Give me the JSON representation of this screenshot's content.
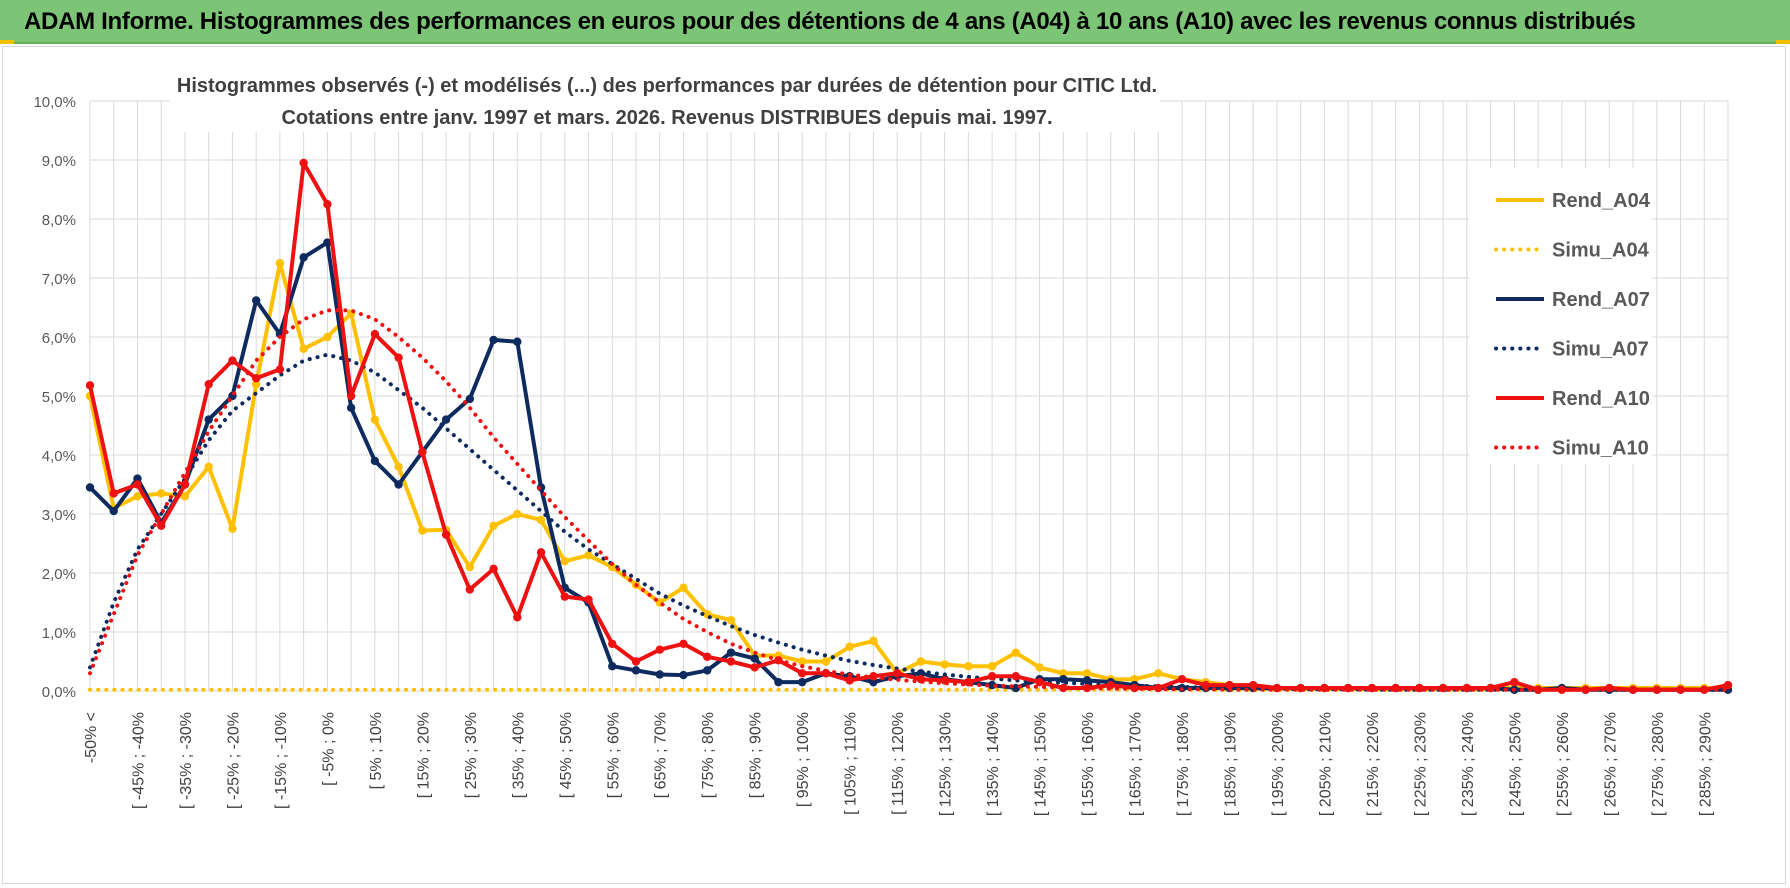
{
  "banner": {
    "title": "ADAM Informe. Histogrammes des performances en euros pour des détentions de 4 ans (A04) à 10 ans (A10) avec les revenus connus distribués"
  },
  "colors": {
    "banner_bg": "#7cc576",
    "A04": "#ffc000",
    "A07": "#0d2b5e",
    "A10": "#ee1111",
    "grid": "#d9d9d9"
  },
  "chart_data": {
    "type": "line",
    "title": "Histogrammes observés (-) et modélisés (...) des performances par durées de détention pour CITIC Ltd.",
    "subtitle": "Cotations entre janv. 1997 et mars. 2026. Revenus DISTRIBUES depuis mai. 1997.",
    "xlabel": "",
    "ylabel": "",
    "ylim": [
      0,
      10
    ],
    "y_ticks": [
      "0,0%",
      "1,0%",
      "2,0%",
      "3,0%",
      "4,0%",
      "5,0%",
      "6,0%",
      "7,0%",
      "8,0%",
      "9,0%",
      "10,0%"
    ],
    "x_tick_labels": [
      "-50% <",
      "[ -45% ; -40%",
      "[ -35% ; -30%",
      "[ -25% ; -20%",
      "[ -15% ; -10%",
      "[ -5% ; 0%",
      "[ 5% ; 10%",
      "[ 15% ; 20%",
      "[ 25% ; 30%",
      "[ 35% ; 40%",
      "[ 45% ; 50%",
      "[ 55% ; 60%",
      "[ 65% ; 70%",
      "[ 75% ; 80%",
      "[ 85% ; 90%",
      "[ 95% ; 100%",
      "[ 105% ; 110%",
      "[ 115% ; 120%",
      "[ 125% ; 130%",
      "[ 135% ; 140%",
      "[ 145% ; 150%",
      "[ 155% ; 160%",
      "[ 165% ; 170%",
      "[ 175% ; 180%",
      "[ 185% ; 190%",
      "[ 195% ; 200%",
      "[ 205% ; 210%",
      "[ 215% ; 220%",
      "[ 225% ; 230%",
      "[ 235% ; 240%",
      "[ 245% ; 250%",
      "[ 255% ; 260%",
      "[ 265% ; 270%",
      "[ 275% ; 280%",
      "[ 285% ; 290%"
    ],
    "x_count": 70,
    "legend_position": "right",
    "series": [
      {
        "name": "Rend_A04",
        "color": "#ffc000",
        "style": "solid",
        "values": [
          5.0,
          3.1,
          3.3,
          3.35,
          3.3,
          3.8,
          2.75,
          5.2,
          7.25,
          5.8,
          6.0,
          6.4,
          4.6,
          3.8,
          2.72,
          2.73,
          2.1,
          2.8,
          3.0,
          2.9,
          2.2,
          2.3,
          2.1,
          1.8,
          1.5,
          1.75,
          1.3,
          1.2,
          0.6,
          0.6,
          0.5,
          0.5,
          0.75,
          0.85,
          0.3,
          0.5,
          0.45,
          0.42,
          0.42,
          0.65,
          0.4,
          0.3,
          0.3,
          0.2,
          0.2,
          0.3,
          0.2,
          0.15,
          0.1,
          0.05,
          0.05,
          0.05,
          0.05,
          0.05,
          0.05,
          0.05,
          0.05,
          0.05,
          0.05,
          0.05,
          0.05,
          0.05,
          0.05,
          0.05,
          0.05,
          0.05,
          0.05,
          0.05,
          0.05,
          0.05
        ]
      },
      {
        "name": "Simu_A04",
        "color": "#ffc000",
        "style": "dotted",
        "values": [
          0.02,
          0.02,
          0.02,
          0.02,
          0.02,
          0.02,
          0.02,
          0.02,
          0.02,
          0.02,
          0.02,
          0.02,
          0.02,
          0.02,
          0.02,
          0.02,
          0.02,
          0.02,
          0.02,
          0.02,
          0.02,
          0.02,
          0.02,
          0.02,
          0.02,
          0.02,
          0.02,
          0.02,
          0.02,
          0.02,
          0.02,
          0.02,
          0.02,
          0.02,
          0.02,
          0.02,
          0.02,
          0.02,
          0.02,
          0.02,
          0.02,
          0.02,
          0.02,
          0.02,
          0.02,
          0.02,
          0.02,
          0.02,
          0.02,
          0.02,
          0.02,
          0.02,
          0.02,
          0.02,
          0.02,
          0.02,
          0.02,
          0.02,
          0.02,
          0.02,
          0.02,
          0.02,
          0.02,
          0.02,
          0.02,
          0.02,
          0.02,
          0.02,
          0.02,
          0.02
        ]
      },
      {
        "name": "Rend_A07",
        "color": "#0d2b5e",
        "style": "solid",
        "values": [
          3.45,
          3.05,
          3.6,
          2.85,
          3.5,
          4.6,
          5.0,
          6.62,
          6.05,
          7.35,
          7.6,
          4.8,
          3.9,
          3.5,
          4.05,
          4.6,
          4.95,
          5.95,
          5.92,
          3.45,
          1.75,
          1.5,
          0.42,
          0.35,
          0.28,
          0.27,
          0.35,
          0.65,
          0.55,
          0.15,
          0.15,
          0.3,
          0.25,
          0.15,
          0.25,
          0.3,
          0.2,
          0.15,
          0.1,
          0.05,
          0.2,
          0.2,
          0.18,
          0.15,
          0.1,
          0.05,
          0.05,
          0.05,
          0.05,
          0.05,
          0.05,
          0.05,
          0.05,
          0.05,
          0.05,
          0.05,
          0.05,
          0.05,
          0.05,
          0.05,
          0.02,
          0.02,
          0.05,
          0.02,
          0.02,
          0.02,
          0.02,
          0.02,
          0.02,
          0.02
        ]
      },
      {
        "name": "Simu_A07",
        "color": "#0d2b5e",
        "style": "dotted",
        "values": [
          0.4,
          1.5,
          2.4,
          3.0,
          3.6,
          4.25,
          4.75,
          5.05,
          5.35,
          5.6,
          5.7,
          5.6,
          5.4,
          5.1,
          4.8,
          4.45,
          4.1,
          3.75,
          3.4,
          3.05,
          2.7,
          2.4,
          2.15,
          1.9,
          1.65,
          1.45,
          1.27,
          1.1,
          0.95,
          0.82,
          0.7,
          0.6,
          0.51,
          0.44,
          0.38,
          0.33,
          0.28,
          0.24,
          0.21,
          0.18,
          0.16,
          0.14,
          0.12,
          0.1,
          0.09,
          0.08,
          0.07,
          0.06,
          0.05,
          0.04,
          0.04,
          0.03,
          0.03,
          0.03,
          0.02,
          0.02,
          0.02,
          0.02,
          0.02,
          0.02,
          0.02,
          0.02,
          0.02,
          0.02,
          0.02,
          0.02,
          0.02,
          0.02,
          0.02,
          0.02
        ]
      },
      {
        "name": "Rend_A10",
        "color": "#ee1111",
        "style": "solid",
        "values": [
          5.18,
          3.35,
          3.5,
          2.8,
          3.5,
          5.2,
          5.6,
          5.3,
          5.45,
          8.95,
          8.25,
          5.0,
          6.05,
          5.65,
          4.05,
          2.65,
          1.72,
          2.07,
          1.25,
          2.35,
          1.6,
          1.55,
          0.8,
          0.5,
          0.7,
          0.8,
          0.58,
          0.5,
          0.4,
          0.52,
          0.3,
          0.3,
          0.18,
          0.25,
          0.3,
          0.2,
          0.18,
          0.15,
          0.25,
          0.25,
          0.15,
          0.05,
          0.05,
          0.1,
          0.05,
          0.05,
          0.2,
          0.1,
          0.1,
          0.1,
          0.05,
          0.05,
          0.05,
          0.05,
          0.05,
          0.05,
          0.05,
          0.05,
          0.05,
          0.05,
          0.15,
          0.02,
          0.02,
          0.02,
          0.05,
          0.02,
          0.02,
          0.02,
          0.02,
          0.1
        ]
      },
      {
        "name": "Simu_A10",
        "color": "#ee1111",
        "style": "dotted",
        "values": [
          0.3,
          1.3,
          2.3,
          3.0,
          3.7,
          4.4,
          5.0,
          5.6,
          6.0,
          6.3,
          6.45,
          6.45,
          6.3,
          6.0,
          5.65,
          5.25,
          4.8,
          4.3,
          3.85,
          3.4,
          2.95,
          2.55,
          2.15,
          1.8,
          1.5,
          1.22,
          1.0,
          0.8,
          0.65,
          0.52,
          0.42,
          0.34,
          0.28,
          0.23,
          0.19,
          0.16,
          0.13,
          0.11,
          0.09,
          0.08,
          0.07,
          0.06,
          0.05,
          0.04,
          0.04,
          0.03,
          0.03,
          0.03,
          0.02,
          0.02,
          0.02,
          0.02,
          0.02,
          0.02,
          0.02,
          0.02,
          0.02,
          0.02,
          0.02,
          0.02,
          0.02,
          0.02,
          0.02,
          0.02,
          0.02,
          0.02,
          0.02,
          0.02,
          0.02,
          0.02
        ]
      }
    ]
  }
}
